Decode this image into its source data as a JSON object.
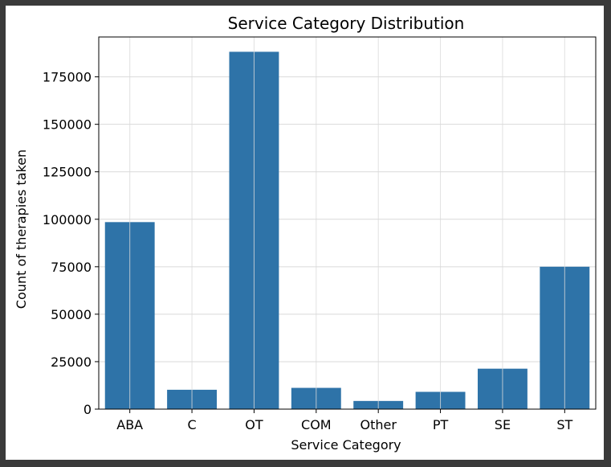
{
  "chart_data": {
    "type": "bar",
    "title": "Service Category Distribution",
    "xlabel": "Service Category",
    "ylabel": "Count of therapies taken",
    "categories": [
      "ABA",
      "C",
      "OT",
      "COM",
      "Other",
      "PT",
      "SE",
      "ST"
    ],
    "values": [
      98500,
      10200,
      188200,
      11200,
      4300,
      9100,
      21300,
      75000
    ],
    "ylim": [
      0,
      196000
    ],
    "yticks": [
      0,
      25000,
      50000,
      75000,
      100000,
      125000,
      150000,
      175000
    ],
    "grid": true,
    "bar_color": "#2e73a8"
  }
}
